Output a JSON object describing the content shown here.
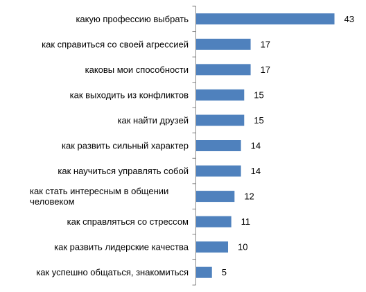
{
  "chart_data": {
    "type": "bar",
    "orientation": "horizontal",
    "categories": [
      "какую профессию выбрать",
      "как справиться со своей агрессией",
      "каковы мои способности",
      "как выходить из конфликтов",
      "как найти друзей",
      "как развить сильный характер",
      "как научиться управлять собой",
      "как стать интересным в общении человеком",
      "как справляться со стрессом",
      "как развить лидерские качества",
      "как успешно общаться, знакомиться"
    ],
    "values": [
      43,
      17,
      17,
      15,
      15,
      14,
      14,
      12,
      11,
      10,
      5
    ],
    "data_labels": [
      "43",
      "17",
      "17",
      "15",
      "15",
      "14",
      "14",
      "12",
      "11",
      "10",
      "5"
    ],
    "xlim": [
      0,
      43
    ],
    "grid": false,
    "legend": "none",
    "bar_color": "#4F81BD",
    "axis_color": "#868686"
  }
}
